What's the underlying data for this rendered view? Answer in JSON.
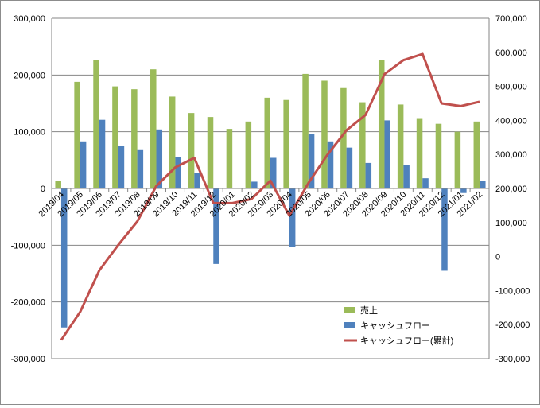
{
  "chart_data": {
    "type": "bar",
    "categories": [
      "2019/04",
      "2019/05",
      "2019/06",
      "2019/07",
      "2019/08",
      "2019/09",
      "2019/10",
      "2019/11",
      "2019/12",
      "2020/01",
      "2020/02",
      "2020/03",
      "2020/04",
      "2020/05",
      "2020/06",
      "2020/07",
      "2020/08",
      "2020/09",
      "2020/10",
      "2020/11",
      "2020/12",
      "2021/01",
      "2021/02"
    ],
    "series": [
      {
        "name": "売上",
        "type": "bar",
        "axis": "left",
        "color": "#9BBB59",
        "values": [
          14000,
          188000,
          226000,
          180000,
          175000,
          210000,
          162000,
          133000,
          126000,
          105000,
          118000,
          160000,
          156000,
          202000,
          190000,
          177000,
          152000,
          226000,
          148000,
          124000,
          114000,
          100000,
          118000
        ]
      },
      {
        "name": "キャッシュフロー",
        "type": "bar",
        "axis": "left",
        "color": "#4F81BD",
        "values": [
          -245000,
          83000,
          121000,
          75000,
          69000,
          104000,
          55000,
          28000,
          -133000,
          0,
          12000,
          54000,
          -103000,
          96000,
          83000,
          72000,
          45000,
          120000,
          41000,
          18000,
          -145000,
          -8000,
          13000
        ]
      },
      {
        "name": "キャッシュフロー(累計)",
        "type": "line",
        "axis": "right",
        "color": "#C0504D",
        "values": [
          -245000,
          -162000,
          -41000,
          34000,
          103000,
          207000,
          262000,
          290000,
          157000,
          157000,
          169000,
          223000,
          120000,
          216000,
          299000,
          371000,
          416000,
          536000,
          577000,
          595000,
          450000,
          442000,
          455000
        ]
      }
    ],
    "y_left": {
      "min": -300000,
      "max": 300000,
      "ticks": [
        "300,000",
        "200,000",
        "100,000",
        "0",
        "-100,000",
        "-200,000",
        "-300,000"
      ]
    },
    "y_right": {
      "min": -300000,
      "max": 700000,
      "ticks": [
        "700,000",
        "600,000",
        "500,000",
        "400,000",
        "300,000",
        "200,000",
        "100,000",
        "0",
        "-100,000",
        "-200,000",
        "-300,000"
      ]
    },
    "grid": true,
    "legend_position": "bottom-right"
  }
}
